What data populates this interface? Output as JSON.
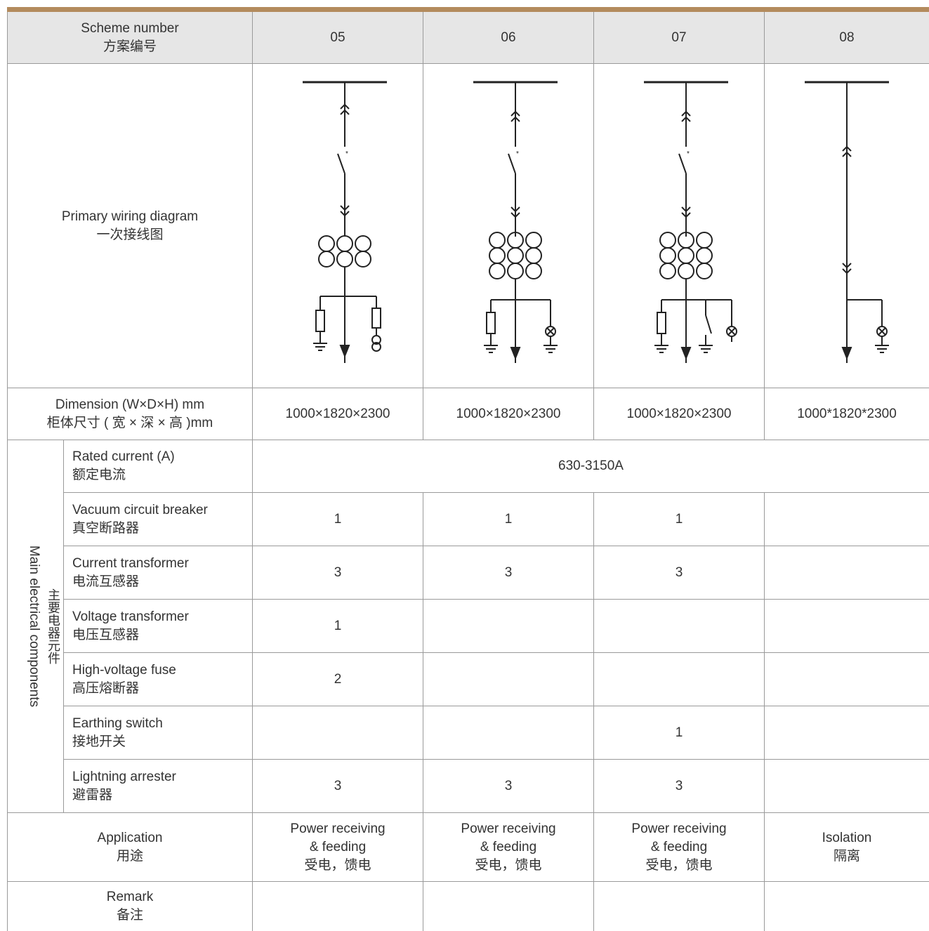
{
  "header": {
    "label_en": "Scheme number",
    "label_cn": "方案编号",
    "schemes": [
      "05",
      "06",
      "07",
      "08"
    ]
  },
  "diagram_row": {
    "label_en": "Primary wiring diagram",
    "label_cn": "一次接线图"
  },
  "dimension_row": {
    "label_en": "Dimension (W×D×H) mm",
    "label_cn": "柜体尺寸 ( 宽 × 深 × 高 )mm",
    "values": [
      "1000×1820×2300",
      "1000×1820×2300",
      "1000×1820×2300",
      "1000*1820*2300"
    ]
  },
  "components": {
    "group_en": "Main electrical components",
    "group_cn": "主要电器元件",
    "rated_current": {
      "label_en": "Rated current (A)",
      "label_cn": "额定电流",
      "value": "630-3150A"
    },
    "rows": [
      {
        "label_en": "Vacuum circuit breaker",
        "label_cn": "真空断路器",
        "values": [
          "1",
          "1",
          "1",
          ""
        ]
      },
      {
        "label_en": "Current transformer",
        "label_cn": "电流互感器",
        "values": [
          "3",
          "3",
          "3",
          ""
        ]
      },
      {
        "label_en": "Voltage transformer",
        "label_cn": "电压互感器",
        "values": [
          "1",
          "",
          "",
          ""
        ]
      },
      {
        "label_en": "High-voltage fuse",
        "label_cn": "高压熔断器",
        "values": [
          "2",
          "",
          "",
          ""
        ]
      },
      {
        "label_en": "Earthing switch",
        "label_cn": "接地开关",
        "values": [
          "",
          "",
          "1",
          ""
        ]
      },
      {
        "label_en": "Lightning arrester",
        "label_cn": "避雷器",
        "values": [
          "3",
          "3",
          "3",
          ""
        ]
      }
    ]
  },
  "application_row": {
    "label_en": "Application",
    "label_cn": "用途",
    "values": [
      {
        "en1": "Power receiving",
        "en2": "& feeding",
        "cn": "受电，馈电"
      },
      {
        "en1": "Power receiving",
        "en2": "& feeding",
        "cn": "受电，馈电"
      },
      {
        "en1": "Power receiving",
        "en2": "& feeding",
        "cn": "受电，馈电"
      },
      {
        "en1": "Isolation",
        "en2": "",
        "cn": "隔离"
      }
    ]
  },
  "remark_row": {
    "label_en": "Remark",
    "label_cn": "备注",
    "values": [
      "",
      "",
      "",
      ""
    ]
  }
}
